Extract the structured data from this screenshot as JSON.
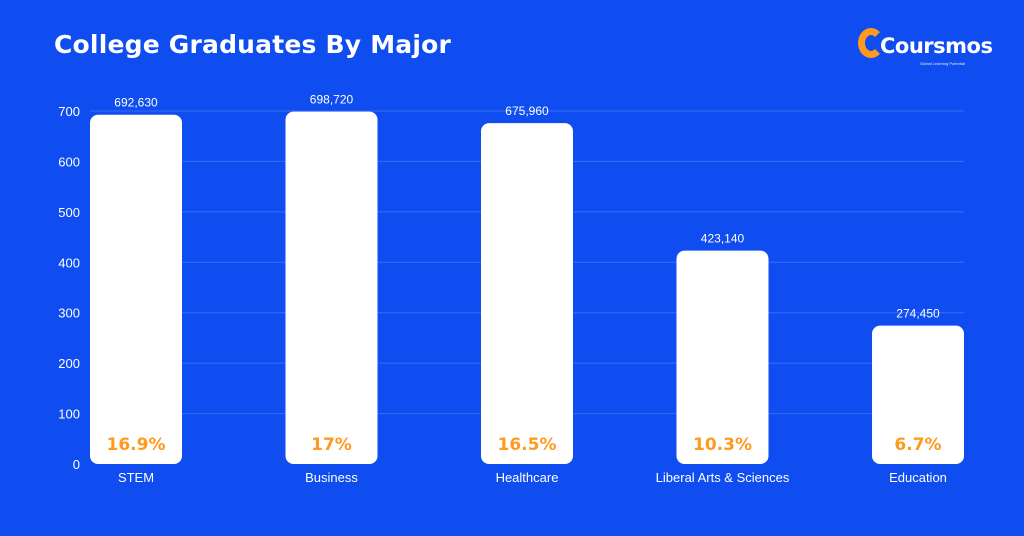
{
  "chart_data": {
    "type": "bar",
    "title": "College Graduates By Major",
    "categories": [
      "STEM",
      "Business",
      "Healthcare",
      "Liberal Arts & Sciences",
      "Education"
    ],
    "values": [
      692.63,
      698.72,
      675.96,
      423.14,
      274.45
    ],
    "value_labels": [
      "692,630",
      "698,720",
      "675,960",
      "423,140",
      "274,450"
    ],
    "percent_labels": [
      "16.9%",
      "17%",
      "16.5%",
      "10.3%",
      "6.7%"
    ],
    "yticks": [
      0,
      100,
      200,
      300,
      400,
      500,
      600,
      700
    ],
    "ylim": [
      0,
      700
    ],
    "xlabel": "",
    "ylabel": "",
    "grid": true,
    "colors": {
      "background": "#0f4df0",
      "bar": "#ffffff",
      "percent": "#ff9a1f",
      "grid": "#3a6cf5"
    }
  },
  "brand": {
    "name": "Coursmos",
    "tagline": "Global Learning Potential"
  }
}
